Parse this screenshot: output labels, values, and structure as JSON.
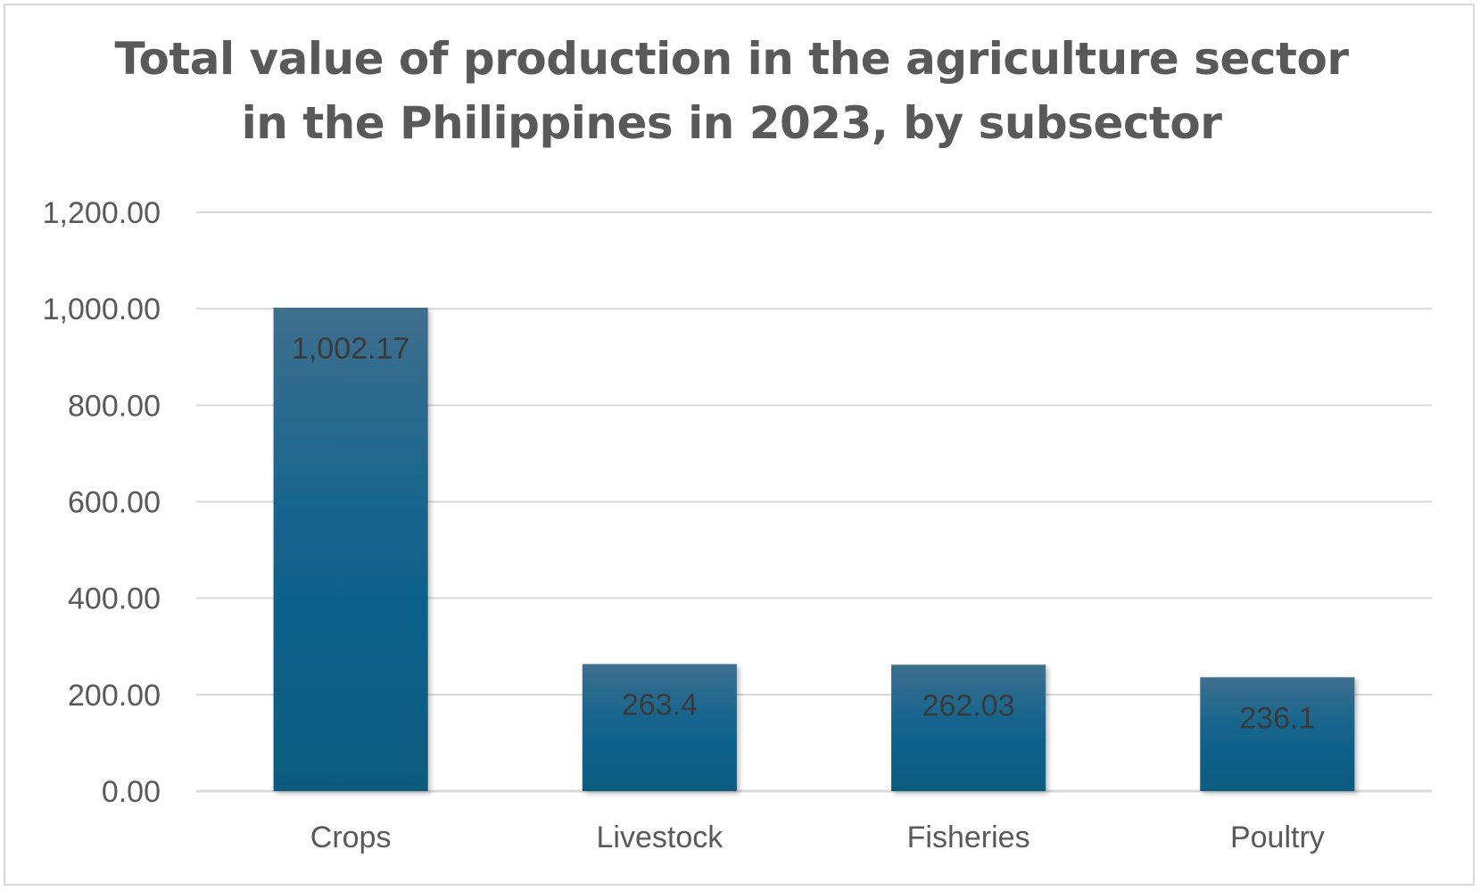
{
  "chart_data": {
    "type": "bar",
    "title": "Total value of production in the agriculture sector in the Philippines in 2023, by subsector",
    "categories": [
      "Crops",
      "Livestock",
      "Fisheries",
      "Poultry"
    ],
    "values": [
      1002.17,
      263.4,
      262.03,
      236.1
    ],
    "data_labels": [
      "1,002.17",
      "263.4",
      "262.03",
      "236.1"
    ],
    "yticks": [
      0,
      200,
      400,
      600,
      800,
      1000,
      1200
    ],
    "ytick_labels": [
      "0.00",
      "200.00",
      "400.00",
      "600.00",
      "800.00",
      "1,000.00",
      "1,200.00"
    ],
    "ylim": [
      0,
      1200
    ],
    "xlabel": "",
    "ylabel": "",
    "grid": true,
    "legend": "none",
    "colors": {
      "bar_top": "#3f6f8f",
      "bar_mid": "#13648e",
      "bar_bottom": "#0b5a80",
      "grid": "#d9d9d9",
      "text": "#595959"
    }
  }
}
